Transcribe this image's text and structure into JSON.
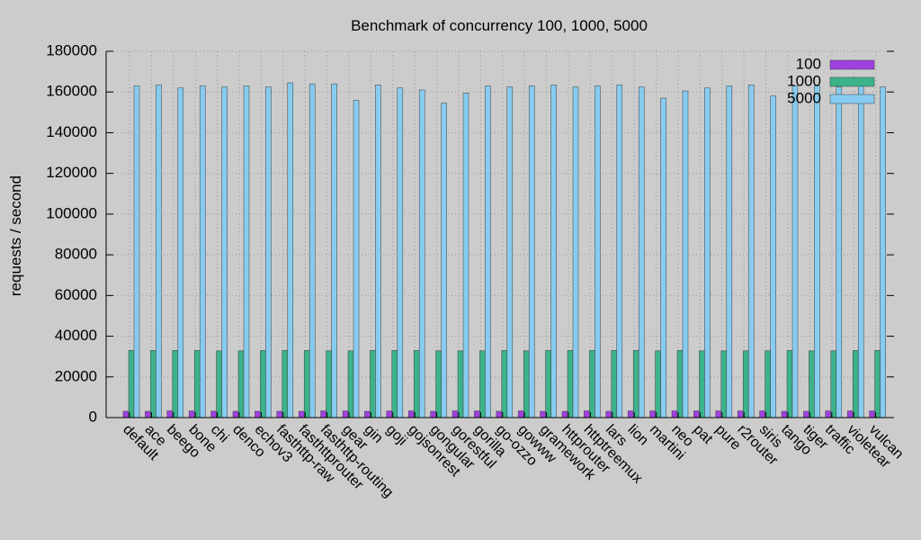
{
  "chart_data": {
    "type": "bar",
    "title": "Benchmark of concurrency 100, 1000, 5000",
    "xlabel": "",
    "ylabel": "requests / second",
    "ylim": [
      0,
      180000
    ],
    "yticks": [
      0,
      20000,
      40000,
      60000,
      80000,
      100000,
      120000,
      140000,
      160000,
      180000
    ],
    "grid": true,
    "legend_position": "top-right",
    "categories": [
      "default",
      "ace",
      "beego",
      "bone",
      "chi",
      "denco",
      "echov3",
      "fasthttp-raw",
      "fasthttprouter",
      "fasthttp-routing",
      "gear",
      "gin",
      "goji",
      "gojsonrest",
      "gongular",
      "gorestful",
      "gorilla",
      "go-ozzo",
      "gowww",
      "gramework",
      "httprouter",
      "httptreemux",
      "lars",
      "lion",
      "martini",
      "neo",
      "pat",
      "pure",
      "r2router",
      "siris",
      "tango",
      "tiger",
      "traffic",
      "violetear",
      "vulcan"
    ],
    "series": [
      {
        "name": "100",
        "color": "#a040e0",
        "values": [
          3100,
          3100,
          3300,
          3300,
          3200,
          3100,
          3100,
          3100,
          3100,
          3300,
          3300,
          3100,
          3300,
          3300,
          3100,
          3300,
          3300,
          3100,
          3300,
          3100,
          3100,
          3300,
          3100,
          3300,
          3300,
          3300,
          3300,
          3300,
          3300,
          3300,
          3100,
          3100,
          3300,
          3300,
          3300
        ]
      },
      {
        "name": "1000",
        "color": "#3cb38a",
        "values": [
          33000,
          33000,
          33000,
          33000,
          32800,
          32800,
          33000,
          33000,
          33000,
          32800,
          32800,
          33000,
          33000,
          33000,
          32800,
          32800,
          32800,
          33000,
          32800,
          33000,
          33000,
          33000,
          33000,
          33000,
          32800,
          33000,
          32800,
          32800,
          32800,
          32800,
          33000,
          32800,
          32800,
          33000,
          33000
        ]
      },
      {
        "name": "5000",
        "color": "#87ccf0",
        "values": [
          163000,
          163500,
          162000,
          163000,
          162500,
          163000,
          162500,
          164500,
          164000,
          164000,
          156000,
          163500,
          162000,
          161000,
          154500,
          159500,
          163000,
          162500,
          163000,
          163500,
          162500,
          163000,
          163500,
          162500,
          157000,
          160500,
          162000,
          163000,
          163500,
          158000,
          163000,
          163000,
          162500,
          163000,
          162500
        ]
      }
    ]
  }
}
